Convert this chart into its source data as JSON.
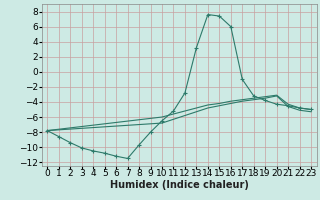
{
  "xlabel": "Humidex (Indice chaleur)",
  "xlim": [
    -0.5,
    23.5
  ],
  "ylim": [
    -12.5,
    9
  ],
  "yticks": [
    -12,
    -10,
    -8,
    -6,
    -4,
    -2,
    0,
    2,
    4,
    6,
    8
  ],
  "xticks": [
    0,
    1,
    2,
    3,
    4,
    5,
    6,
    7,
    8,
    9,
    10,
    11,
    12,
    13,
    14,
    15,
    16,
    17,
    18,
    19,
    20,
    21,
    22,
    23
  ],
  "background_color": "#cdeae4",
  "grid_color": "#c8a0a0",
  "line_color": "#2d7a6a",
  "line1_x": [
    0,
    1,
    2,
    3,
    4,
    5,
    6,
    7,
    8,
    9,
    10,
    11,
    12,
    13,
    14,
    15,
    16,
    17,
    18,
    19,
    20,
    21,
    22,
    23
  ],
  "line1_y": [
    -7.8,
    -8.6,
    -9.4,
    -10.1,
    -10.5,
    -10.8,
    -11.2,
    -11.5,
    -9.7,
    -8.0,
    -6.5,
    -5.2,
    -2.8,
    3.2,
    7.6,
    7.4,
    6.0,
    -1.0,
    -3.2,
    -3.8,
    -4.3,
    -4.5,
    -4.8,
    -5.0
  ],
  "line2_x": [
    0,
    10,
    11,
    12,
    13,
    14,
    15,
    16,
    17,
    18,
    19,
    20,
    21,
    22,
    23
  ],
  "line2_y": [
    -7.8,
    -6.0,
    -5.6,
    -5.2,
    -4.8,
    -4.4,
    -4.2,
    -3.9,
    -3.7,
    -3.5,
    -3.3,
    -3.1,
    -4.3,
    -4.8,
    -5.0
  ],
  "line3_x": [
    0,
    10,
    11,
    12,
    13,
    14,
    15,
    16,
    17,
    18,
    19,
    20,
    21,
    22,
    23
  ],
  "line3_y": [
    -7.8,
    -6.8,
    -6.3,
    -5.8,
    -5.3,
    -4.8,
    -4.5,
    -4.2,
    -3.9,
    -3.7,
    -3.5,
    -3.2,
    -4.6,
    -5.1,
    -5.3
  ],
  "fontsize_label": 7,
  "fontsize_tick": 6.5
}
